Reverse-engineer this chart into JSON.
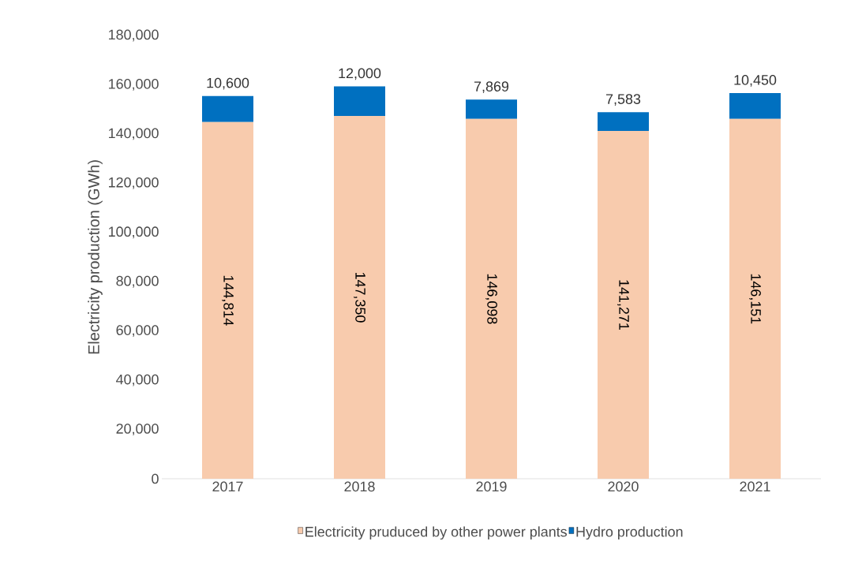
{
  "chart_data": {
    "type": "bar",
    "stacked": true,
    "ylabel": "Electricity production (GWh)",
    "categories": [
      "2017",
      "2018",
      "2019",
      "2020",
      "2021"
    ],
    "series": [
      {
        "name": "Electricity pruduced by other power plants",
        "color": "#f8cbad",
        "values": [
          144814,
          147350,
          146098,
          141271,
          146151
        ],
        "value_labels": [
          "144,814",
          "147,350",
          "146,098",
          "141,271",
          "146,151"
        ]
      },
      {
        "name": "Hydro production",
        "color": "#0070c0",
        "values": [
          10600,
          12000,
          7869,
          7583,
          10450
        ],
        "value_labels": [
          "10,600",
          "12,000",
          "7,869",
          "7,583",
          "10,450"
        ]
      }
    ],
    "ylim": [
      0,
      180000
    ],
    "yticks": [
      {
        "value": 0,
        "label": "0"
      },
      {
        "value": 20000,
        "label": "20,000"
      },
      {
        "value": 40000,
        "label": "40,000"
      },
      {
        "value": 60000,
        "label": "60,000"
      },
      {
        "value": 80000,
        "label": "80,000"
      },
      {
        "value": 100000,
        "label": "100,000"
      },
      {
        "value": 120000,
        "label": "120,000"
      },
      {
        "value": 140000,
        "label": "140,000"
      },
      {
        "value": 160000,
        "label": "160,000"
      },
      {
        "value": 180000,
        "label": "180,000"
      }
    ],
    "grid": false,
    "legend": "bottom"
  }
}
